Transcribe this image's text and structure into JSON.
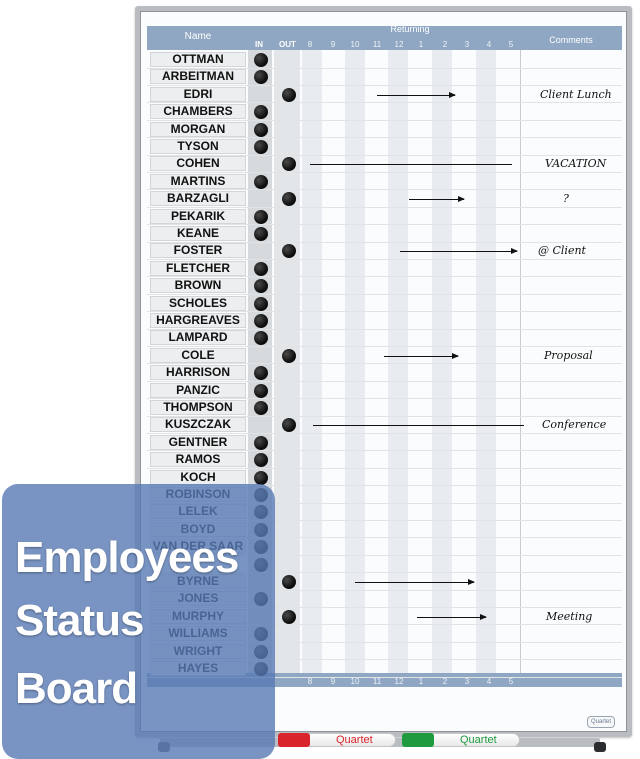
{
  "board": {
    "header": {
      "name": "Name",
      "in": "IN",
      "out": "OUT",
      "returning": "Returning",
      "comments": "Comments",
      "hours": [
        "8",
        "9",
        "10",
        "11",
        "12",
        "1",
        "2",
        "3",
        "4",
        "5"
      ]
    },
    "rows": [
      {
        "name": "OTTMAN",
        "status": "in",
        "comment": ""
      },
      {
        "name": "ARBEITMAN",
        "status": "in",
        "comment": ""
      },
      {
        "name": "EDRI",
        "status": "out",
        "comment": "Client Lunch"
      },
      {
        "name": "CHAMBERS",
        "status": "in",
        "comment": ""
      },
      {
        "name": "MORGAN",
        "status": "in",
        "comment": ""
      },
      {
        "name": "TYSON",
        "status": "in",
        "comment": ""
      },
      {
        "name": "COHEN",
        "status": "out",
        "comment": "VACATION"
      },
      {
        "name": "MARTINS",
        "status": "in",
        "comment": ""
      },
      {
        "name": "BARZAGLI",
        "status": "out",
        "comment": "?"
      },
      {
        "name": "PEKARIK",
        "status": "in",
        "comment": ""
      },
      {
        "name": "KEANE",
        "status": "in",
        "comment": ""
      },
      {
        "name": "FOSTER",
        "status": "out",
        "comment": "@ Client"
      },
      {
        "name": "FLETCHER",
        "status": "in",
        "comment": ""
      },
      {
        "name": "BROWN",
        "status": "in",
        "comment": ""
      },
      {
        "name": "SCHOLES",
        "status": "in",
        "comment": ""
      },
      {
        "name": "HARGREAVES",
        "status": "in",
        "comment": ""
      },
      {
        "name": "LAMPARD",
        "status": "in",
        "comment": ""
      },
      {
        "name": "COLE",
        "status": "out",
        "comment": "Proposal"
      },
      {
        "name": "HARRISON",
        "status": "in",
        "comment": ""
      },
      {
        "name": "PANZIC",
        "status": "in",
        "comment": ""
      },
      {
        "name": "THOMPSON",
        "status": "in",
        "comment": ""
      },
      {
        "name": "KUSZCZAK",
        "status": "out",
        "comment": "Conference"
      },
      {
        "name": "GENTNER",
        "status": "in",
        "comment": ""
      },
      {
        "name": "RAMOS",
        "status": "in",
        "comment": ""
      },
      {
        "name": "KOCH",
        "status": "in",
        "comment": ""
      },
      {
        "name": "ROBINSON",
        "status": "in",
        "comment": ""
      },
      {
        "name": "LELEK",
        "status": "in",
        "comment": ""
      },
      {
        "name": "BOYD",
        "status": "in",
        "comment": ""
      },
      {
        "name": "VAN DER SAAR",
        "status": "in",
        "comment": ""
      },
      {
        "name": "",
        "status": "in",
        "comment": ""
      },
      {
        "name": "BYRNE",
        "status": "out",
        "comment": ""
      },
      {
        "name": "JONES",
        "status": "in",
        "comment": ""
      },
      {
        "name": "MURPHY",
        "status": "out",
        "comment": "Meeting"
      },
      {
        "name": "WILLIAMS",
        "status": "in",
        "comment": ""
      },
      {
        "name": "WRIGHT",
        "status": "in",
        "comment": ""
      },
      {
        "name": "HAYES",
        "status": "in",
        "comment": ""
      }
    ],
    "brand_badge": "Quartet"
  },
  "markers": [
    {
      "brand": "Quartet",
      "color": "#d8242a"
    },
    {
      "brand": "Quartet",
      "color": "#1f9a3f"
    }
  ],
  "overlay": {
    "line1": "Employees",
    "line2": "Status",
    "line3": "Board",
    "color": "#5879b4"
  }
}
